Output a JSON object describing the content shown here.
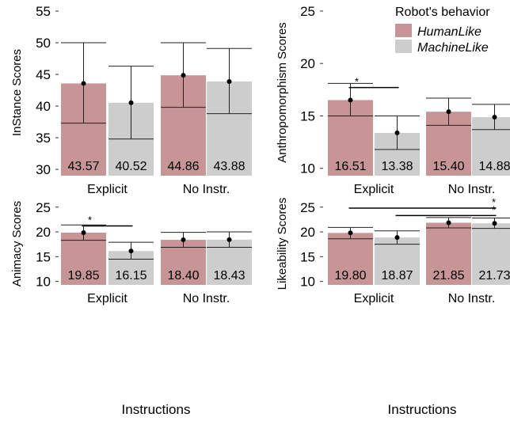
{
  "legend": {
    "title": "Robot's behavior",
    "items": [
      {
        "label": "HumanLike",
        "color": "#c89597"
      },
      {
        "label": "MachineLike",
        "color": "#cdcdcd"
      }
    ]
  },
  "shared_xlabel": "Instructions",
  "chart_data": [
    {
      "type": "bar",
      "ylabel": "InStance Scores",
      "categories": [
        "Explicit",
        "No Instr."
      ],
      "ylim": [
        29,
        56
      ],
      "yticks": [
        30,
        35,
        40,
        45,
        50,
        55
      ],
      "series": [
        {
          "name": "HumanLike",
          "values": [
            43.57,
            44.86
          ],
          "ci_upper": [
            50.0,
            50.0
          ],
          "ci_lower": [
            37.3,
            39.8
          ],
          "labels": [
            "43.57",
            "44.86"
          ]
        },
        {
          "name": "MachineLike",
          "values": [
            40.52,
            43.88
          ],
          "ci_upper": [
            46.3,
            49.1
          ],
          "ci_lower": [
            34.8,
            38.8
          ],
          "labels": [
            "40.52",
            "43.88"
          ]
        }
      ],
      "significance": []
    },
    {
      "type": "bar",
      "ylabel": "Anthropomorphism Scores",
      "categories": [
        "Explicit",
        "No Instr."
      ],
      "ylim": [
        9.3,
        25.6
      ],
      "yticks": [
        10,
        15,
        20,
        25
      ],
      "series": [
        {
          "name": "HumanLike",
          "values": [
            16.51,
            15.4
          ],
          "ci_upper": [
            18.1,
            16.7
          ],
          "ci_lower": [
            15.0,
            14.1
          ],
          "labels": [
            "16.51",
            "15.40"
          ]
        },
        {
          "name": "MachineLike",
          "values": [
            13.38,
            14.88
          ],
          "ci_upper": [
            15.0,
            16.1
          ],
          "ci_lower": [
            11.8,
            13.7
          ],
          "labels": [
            "13.38",
            "14.88"
          ]
        }
      ],
      "significance": [
        {
          "from": [
            0,
            0
          ],
          "to": [
            0,
            1
          ],
          "y": 17.7,
          "label": "*"
        }
      ]
    },
    {
      "type": "bar",
      "ylabel": "Animacy Scores",
      "categories": [
        "Explicit",
        "No Instr."
      ],
      "ylim": [
        9.3,
        25.6
      ],
      "yticks": [
        10,
        15,
        20,
        25
      ],
      "series": [
        {
          "name": "HumanLike",
          "values": [
            19.85,
            18.4
          ],
          "ci_upper": [
            21.4,
            19.9
          ],
          "ci_lower": [
            18.3,
            16.9
          ],
          "labels": [
            "19.85",
            "18.40"
          ]
        },
        {
          "name": "MachineLike",
          "values": [
            16.15,
            18.43
          ],
          "ci_upper": [
            17.9,
            20.0
          ],
          "ci_lower": [
            14.5,
            16.9
          ],
          "labels": [
            "16.15",
            "18.43"
          ]
        }
      ],
      "significance": [
        {
          "from": [
            0,
            0
          ],
          "to": [
            0,
            1
          ],
          "y": 21.2,
          "label": "*"
        }
      ]
    },
    {
      "type": "bar",
      "ylabel": "Likeability Scores",
      "categories": [
        "Explicit",
        "No Instr."
      ],
      "ylim": [
        9.3,
        25.6
      ],
      "yticks": [
        10,
        15,
        20,
        25
      ],
      "series": [
        {
          "name": "HumanLike",
          "values": [
            19.8,
            21.85
          ],
          "ci_upper": [
            20.9,
            22.9
          ],
          "ci_lower": [
            18.6,
            20.8
          ],
          "labels": [
            "19.80",
            "21.85"
          ]
        },
        {
          "name": "MachineLike",
          "values": [
            18.87,
            21.73
          ],
          "ci_upper": [
            20.2,
            22.8
          ],
          "ci_lower": [
            17.5,
            20.7
          ],
          "labels": [
            "18.87",
            "21.73"
          ]
        }
      ],
      "significance": [
        {
          "from": [
            0,
            0
          ],
          "to": [
            1,
            1
          ],
          "y": 24.8,
          "label": "*"
        },
        {
          "from": [
            0,
            1
          ],
          "to": [
            1,
            1
          ],
          "y": 23.3,
          "label": "*"
        }
      ]
    }
  ]
}
